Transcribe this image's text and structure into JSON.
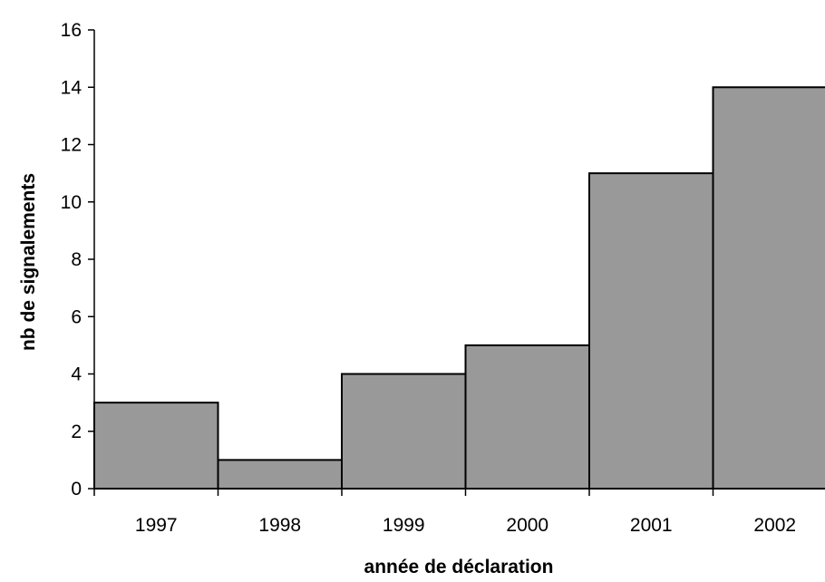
{
  "chart_data": {
    "type": "bar",
    "categories": [
      "1997",
      "1998",
      "1999",
      "2000",
      "2001",
      "2002"
    ],
    "values": [
      3,
      1,
      4,
      5,
      11,
      14
    ],
    "title": "",
    "xlabel": "année de déclaration",
    "ylabel": "nb de signalements",
    "ylim": [
      0,
      16
    ],
    "yticks": [
      0,
      2,
      4,
      6,
      8,
      10,
      12,
      14,
      16
    ],
    "grid": false,
    "legend": "none",
    "bar_color": "#999999",
    "bar_edge_color": "#000000"
  }
}
